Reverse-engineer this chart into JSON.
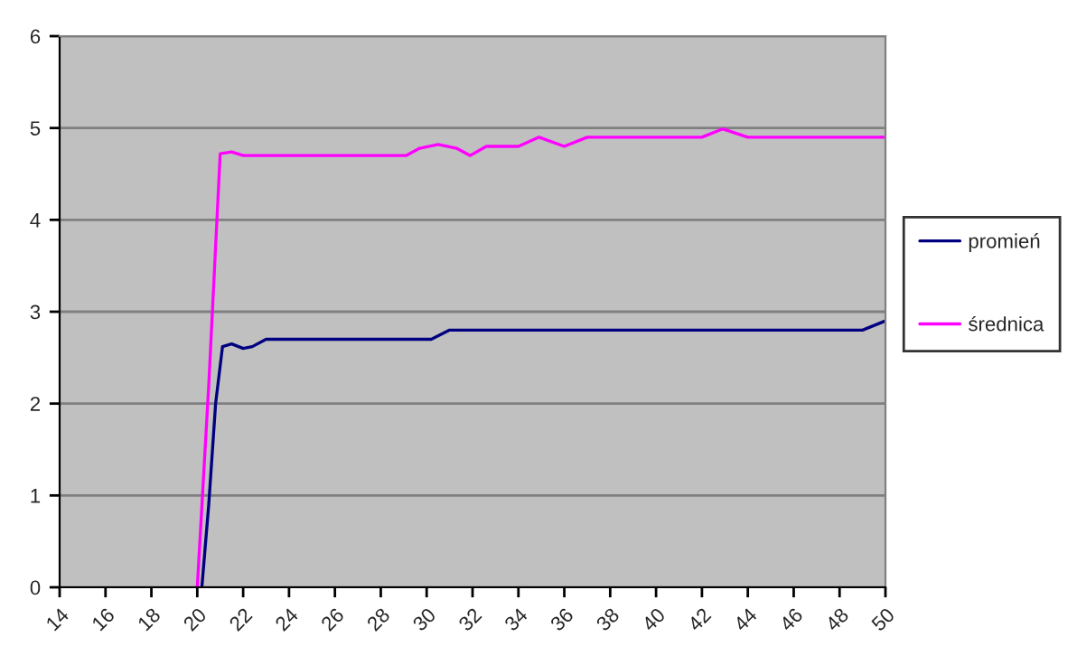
{
  "chart_data": {
    "type": "line",
    "xlim": [
      14,
      50
    ],
    "xticks": [
      14,
      16,
      18,
      20,
      22,
      24,
      26,
      28,
      30,
      32,
      34,
      36,
      38,
      40,
      42,
      44,
      46,
      48,
      50
    ],
    "ylim": [
      0,
      6
    ],
    "yticks": [
      0,
      1,
      2,
      3,
      4,
      5,
      6
    ],
    "grid": "y",
    "legend": "right",
    "marker": "none",
    "line_style": "solid",
    "series": [
      {
        "name": "promień",
        "color": "#000080",
        "x": [
          20.2,
          20.5,
          20.8,
          21.1,
          21.5,
          22.0,
          22.4,
          23.0,
          30.2,
          31.0,
          49.0,
          50.0
        ],
        "values": [
          0,
          0.9,
          2.0,
          2.62,
          2.65,
          2.6,
          2.62,
          2.7,
          2.7,
          2.8,
          2.8,
          2.9
        ]
      },
      {
        "name": "średnica",
        "color": "#ff00ff",
        "x": [
          20.0,
          20.5,
          21.0,
          21.5,
          22.0,
          29.1,
          29.7,
          30.5,
          31.3,
          31.9,
          32.6,
          34.0,
          34.9,
          36.0,
          37.0,
          42.0,
          42.9,
          44.0,
          50.0
        ],
        "values": [
          0,
          2.2,
          4.72,
          4.74,
          4.7,
          4.7,
          4.78,
          4.82,
          4.78,
          4.7,
          4.8,
          4.8,
          4.9,
          4.8,
          4.9,
          4.9,
          4.99,
          4.9,
          4.9
        ]
      }
    ]
  }
}
